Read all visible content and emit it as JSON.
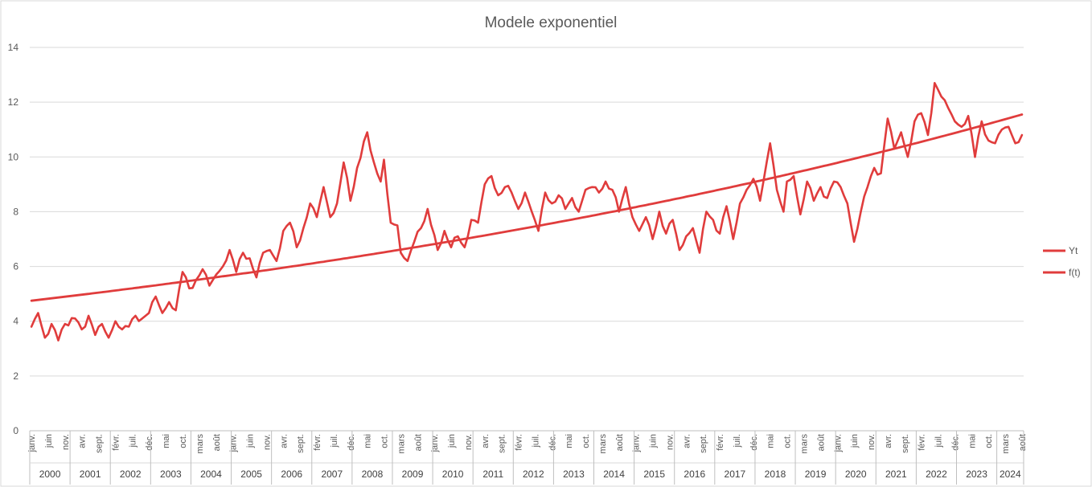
{
  "chart_data": {
    "type": "line",
    "title": "Modele exponentiel",
    "xlabel": "",
    "ylabel": "",
    "ylim": [
      0,
      14
    ],
    "yticks": [
      0,
      2,
      4,
      6,
      8,
      10,
      12,
      14
    ],
    "grid": true,
    "legend_position": "right",
    "x_start": "2000-01",
    "x_end": "2024-08",
    "years": [
      "2000",
      "2001",
      "2002",
      "2003",
      "2004",
      "2005",
      "2006",
      "2007",
      "2008",
      "2009",
      "2010",
      "2011",
      "2012",
      "2013",
      "2014",
      "2015",
      "2016",
      "2017",
      "2018",
      "2019",
      "2020",
      "2021",
      "2022",
      "2023",
      "2024"
    ],
    "month_ticks": [
      "janv.",
      "juin",
      "nov.",
      "avr.",
      "sept.",
      "févr.",
      "juil.",
      "déc.",
      "mai",
      "oct.",
      "mars",
      "août",
      "janv.",
      "juin",
      "nov.",
      "avr.",
      "sept.",
      "févr.",
      "juil.",
      "déc.",
      "mai",
      "oct.",
      "mars",
      "août",
      "janv.",
      "juin",
      "nov.",
      "avr.",
      "sept.",
      "févr.",
      "juil.",
      "déc.",
      "mai",
      "oct.",
      "mars",
      "août",
      "janv.",
      "juin",
      "nov.",
      "avr.",
      "sept.",
      "févr.",
      "juil.",
      "déc.",
      "mai",
      "oct.",
      "mars",
      "août",
      "janv.",
      "juin",
      "nov.",
      "avr.",
      "sept.",
      "févr.",
      "juil.",
      "déc.",
      "mai",
      "oct.",
      "mars",
      "août"
    ],
    "series": [
      {
        "name": "Yt",
        "color": "#e03c3c",
        "keypoints": [
          [
            "2000-01",
            3.8
          ],
          [
            "2000-03",
            4.3
          ],
          [
            "2000-05",
            3.4
          ],
          [
            "2000-07",
            3.9
          ],
          [
            "2000-09",
            3.3
          ],
          [
            "2000-11",
            3.9
          ],
          [
            "2001-02",
            4.1
          ],
          [
            "2001-04",
            3.7
          ],
          [
            "2001-06",
            4.2
          ],
          [
            "2001-08",
            3.5
          ],
          [
            "2001-10",
            3.9
          ],
          [
            "2001-12",
            3.4
          ],
          [
            "2002-02",
            4.0
          ],
          [
            "2002-04",
            3.7
          ],
          [
            "2002-06",
            3.8
          ],
          [
            "2002-08",
            4.2
          ],
          [
            "2002-10",
            4.1
          ],
          [
            "2002-12",
            4.3
          ],
          [
            "2003-02",
            4.9
          ],
          [
            "2003-04",
            4.3
          ],
          [
            "2003-06",
            4.7
          ],
          [
            "2003-08",
            4.4
          ],
          [
            "2003-10",
            5.8
          ],
          [
            "2003-12",
            5.2
          ],
          [
            "2004-02",
            5.5
          ],
          [
            "2004-04",
            5.9
          ],
          [
            "2004-06",
            5.3
          ],
          [
            "2004-08",
            5.7
          ],
          [
            "2004-10",
            6.0
          ],
          [
            "2004-12",
            6.6
          ],
          [
            "2005-02",
            5.8
          ],
          [
            "2005-04",
            6.5
          ],
          [
            "2005-06",
            6.3
          ],
          [
            "2005-08",
            5.6
          ],
          [
            "2005-10",
            6.5
          ],
          [
            "2005-12",
            6.6
          ],
          [
            "2006-02",
            6.2
          ],
          [
            "2006-04",
            7.3
          ],
          [
            "2006-06",
            7.6
          ],
          [
            "2006-08",
            6.7
          ],
          [
            "2006-10",
            7.4
          ],
          [
            "2006-12",
            8.3
          ],
          [
            "2007-02",
            7.8
          ],
          [
            "2007-04",
            8.9
          ],
          [
            "2007-06",
            7.8
          ],
          [
            "2007-08",
            8.3
          ],
          [
            "2007-10",
            9.8
          ],
          [
            "2007-12",
            8.4
          ],
          [
            "2008-02",
            9.6
          ],
          [
            "2008-05",
            10.9
          ],
          [
            "2008-07",
            9.8
          ],
          [
            "2008-09",
            9.1
          ],
          [
            "2008-10",
            9.9
          ],
          [
            "2008-12",
            7.6
          ],
          [
            "2009-02",
            7.5
          ],
          [
            "2009-03",
            6.5
          ],
          [
            "2009-05",
            6.2
          ],
          [
            "2009-07",
            6.9
          ],
          [
            "2009-09",
            7.4
          ],
          [
            "2009-11",
            8.1
          ],
          [
            "2010-02",
            6.6
          ],
          [
            "2010-04",
            7.3
          ],
          [
            "2010-06",
            6.7
          ],
          [
            "2010-08",
            7.1
          ],
          [
            "2010-10",
            6.7
          ],
          [
            "2010-12",
            7.7
          ],
          [
            "2011-02",
            7.6
          ],
          [
            "2011-04",
            9.0
          ],
          [
            "2011-06",
            9.3
          ],
          [
            "2011-08",
            8.6
          ],
          [
            "2011-10",
            8.9
          ],
          [
            "2011-12",
            8.7
          ],
          [
            "2012-02",
            8.1
          ],
          [
            "2012-04",
            8.7
          ],
          [
            "2012-06",
            8.0
          ],
          [
            "2012-08",
            7.3
          ],
          [
            "2012-10",
            8.7
          ],
          [
            "2012-12",
            8.3
          ],
          [
            "2013-02",
            8.6
          ],
          [
            "2013-04",
            8.1
          ],
          [
            "2013-06",
            8.5
          ],
          [
            "2013-08",
            8.0
          ],
          [
            "2013-10",
            8.8
          ],
          [
            "2013-12",
            8.9
          ],
          [
            "2014-02",
            8.7
          ],
          [
            "2014-04",
            9.1
          ],
          [
            "2014-06",
            8.8
          ],
          [
            "2014-08",
            8.0
          ],
          [
            "2014-10",
            8.9
          ],
          [
            "2014-12",
            7.8
          ],
          [
            "2015-02",
            7.3
          ],
          [
            "2015-04",
            7.8
          ],
          [
            "2015-06",
            7.0
          ],
          [
            "2015-08",
            8.0
          ],
          [
            "2015-10",
            7.2
          ],
          [
            "2015-12",
            7.7
          ],
          [
            "2016-02",
            6.6
          ],
          [
            "2016-04",
            7.1
          ],
          [
            "2016-06",
            7.4
          ],
          [
            "2016-08",
            6.5
          ],
          [
            "2016-10",
            8.0
          ],
          [
            "2016-12",
            7.7
          ],
          [
            "2017-02",
            7.2
          ],
          [
            "2017-04",
            8.2
          ],
          [
            "2017-06",
            7.0
          ],
          [
            "2017-08",
            8.3
          ],
          [
            "2017-10",
            8.8
          ],
          [
            "2017-12",
            9.2
          ],
          [
            "2018-02",
            8.4
          ],
          [
            "2018-05",
            10.5
          ],
          [
            "2018-07",
            8.8
          ],
          [
            "2018-09",
            8.0
          ],
          [
            "2018-10",
            9.1
          ],
          [
            "2018-12",
            9.3
          ],
          [
            "2019-02",
            7.9
          ],
          [
            "2019-04",
            9.1
          ],
          [
            "2019-06",
            8.4
          ],
          [
            "2019-08",
            8.9
          ],
          [
            "2019-10",
            8.5
          ],
          [
            "2019-12",
            9.1
          ],
          [
            "2020-02",
            8.9
          ],
          [
            "2020-04",
            8.3
          ],
          [
            "2020-06",
            6.9
          ],
          [
            "2020-08",
            8.0
          ],
          [
            "2020-10",
            8.9
          ],
          [
            "2020-12",
            9.6
          ],
          [
            "2021-02",
            9.4
          ],
          [
            "2021-04",
            11.4
          ],
          [
            "2021-06",
            10.3
          ],
          [
            "2021-08",
            10.9
          ],
          [
            "2021-10",
            10.0
          ],
          [
            "2021-12",
            11.3
          ],
          [
            "2022-02",
            11.6
          ],
          [
            "2022-04",
            10.8
          ],
          [
            "2022-06",
            12.7
          ],
          [
            "2022-08",
            12.2
          ],
          [
            "2022-10",
            11.8
          ],
          [
            "2022-12",
            11.3
          ],
          [
            "2023-02",
            11.1
          ],
          [
            "2023-04",
            11.5
          ],
          [
            "2023-06",
            10.0
          ],
          [
            "2023-08",
            11.3
          ],
          [
            "2023-10",
            10.6
          ],
          [
            "2023-12",
            10.5
          ],
          [
            "2024-02",
            11.0
          ],
          [
            "2024-04",
            11.1
          ],
          [
            "2024-06",
            10.5
          ],
          [
            "2024-08",
            10.8
          ]
        ]
      },
      {
        "name": "f(t)",
        "color": "#e03c3c",
        "model": "exponential",
        "start_value": 4.75,
        "end_value": 11.55
      }
    ]
  }
}
